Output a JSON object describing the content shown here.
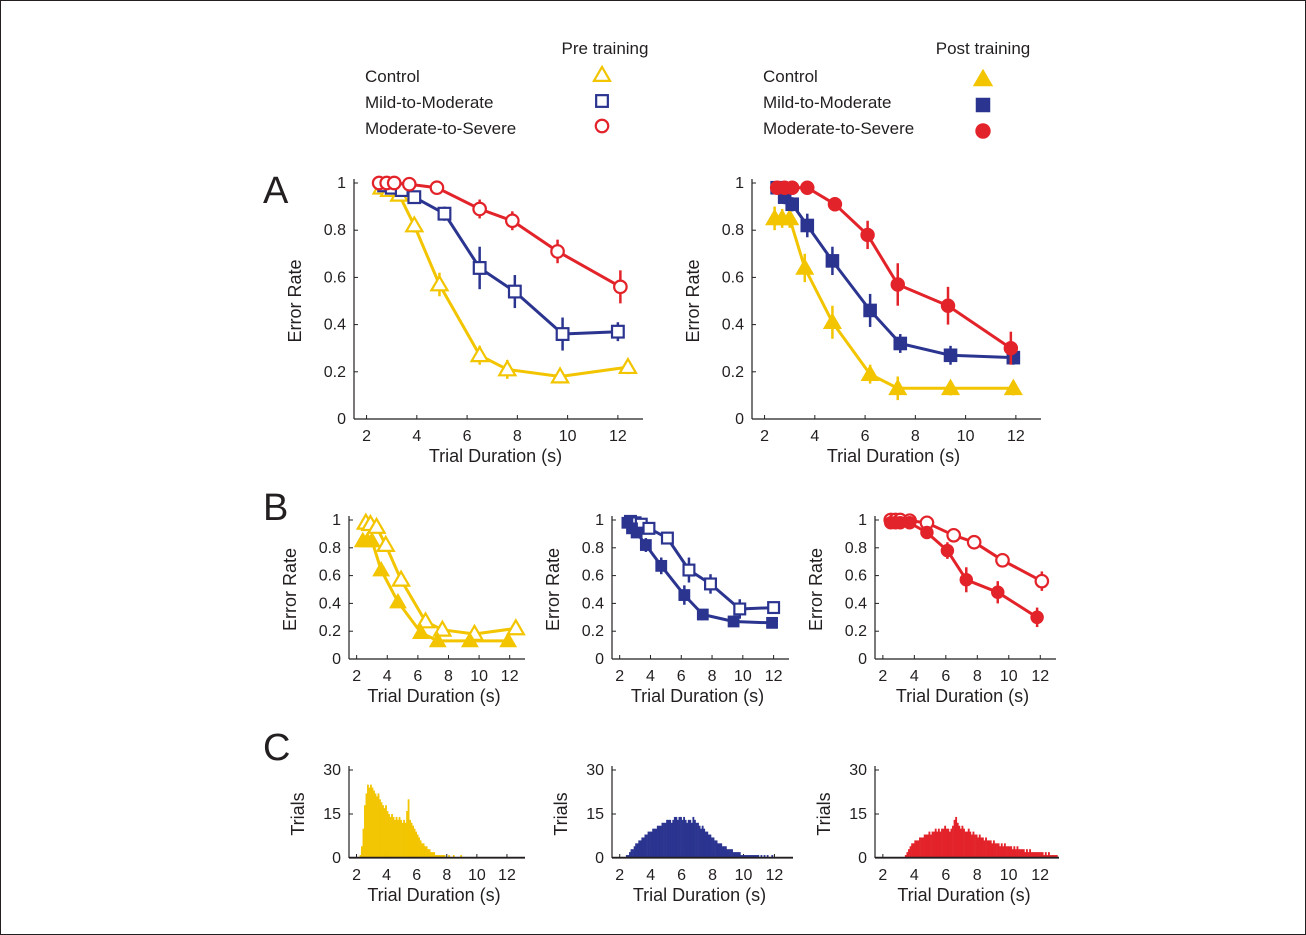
{
  "colors": {
    "control": "#f2c500",
    "mild": "#2b3590",
    "severe": "#e3232a",
    "ink": "#231f20"
  },
  "legend": {
    "pre": {
      "title": "Pre training",
      "items": [
        {
          "label": "Control",
          "marker": "triangle",
          "filled": false,
          "color": "#f2c500"
        },
        {
          "label": "Mild-to-Moderate",
          "marker": "square",
          "filled": false,
          "color": "#2b3590"
        },
        {
          "label": "Moderate-to-Severe",
          "marker": "circle",
          "filled": false,
          "color": "#e3232a"
        }
      ]
    },
    "post": {
      "title": "Post training",
      "items": [
        {
          "label": "Control",
          "marker": "triangle",
          "filled": true,
          "color": "#f2c500"
        },
        {
          "label": "Mild-to-Moderate",
          "marker": "square",
          "filled": true,
          "color": "#2b3590"
        },
        {
          "label": "Moderate-to-Severe",
          "marker": "circle",
          "filled": true,
          "color": "#e3232a"
        }
      ]
    }
  },
  "panel_letters": {
    "a": "A",
    "b": "B",
    "c": "C"
  },
  "chart_data": [
    {
      "id": "A-pre",
      "type": "line",
      "panel": "A",
      "xlabel": "Trial Duration (s)",
      "ylabel": "Error Rate",
      "xlim": [
        1.5,
        13
      ],
      "ylim": [
        0,
        1.05
      ],
      "xticks": [
        2,
        4,
        6,
        8,
        10,
        12
      ],
      "xtick_labels": [
        "2",
        "4",
        "6",
        "8",
        "10",
        "12"
      ],
      "yticks": [
        0,
        0.2,
        0.4,
        0.6,
        0.8,
        1
      ],
      "ytick_labels": [
        "0",
        "0.2",
        "0.4",
        "0.6",
        "0.8",
        "1"
      ],
      "series": [
        {
          "group": "control",
          "marker": "triangle",
          "filled": false,
          "x": [
            2.6,
            2.9,
            3.3,
            3.9,
            4.9,
            6.5,
            7.6,
            9.7,
            12.4
          ],
          "y": [
            0.98,
            0.97,
            0.95,
            0.82,
            0.57,
            0.27,
            0.21,
            0.18,
            0.22
          ],
          "err": [
            0.01,
            0.01,
            0.01,
            0.03,
            0.05,
            0.04,
            0.04,
            0.03,
            0.03
          ]
        },
        {
          "group": "mild",
          "marker": "square",
          "filled": false,
          "x": [
            2.7,
            3.0,
            3.4,
            3.9,
            5.1,
            6.5,
            7.9,
            9.8,
            12.0
          ],
          "y": [
            0.99,
            0.98,
            0.97,
            0.94,
            0.87,
            0.64,
            0.54,
            0.36,
            0.37
          ],
          "err": [
            0.01,
            0.01,
            0.01,
            0.02,
            0.03,
            0.09,
            0.07,
            0.07,
            0.04
          ]
        },
        {
          "group": "severe",
          "marker": "circle",
          "filled": false,
          "x": [
            2.5,
            2.8,
            3.1,
            3.7,
            4.8,
            6.5,
            7.8,
            9.6,
            12.1
          ],
          "y": [
            1.0,
            1.0,
            1.0,
            0.995,
            0.98,
            0.89,
            0.84,
            0.71,
            0.56
          ],
          "err": [
            0.005,
            0.005,
            0.005,
            0.005,
            0.01,
            0.04,
            0.04,
            0.05,
            0.07
          ]
        }
      ]
    },
    {
      "id": "A-post",
      "type": "line",
      "panel": "A",
      "xlabel": "Trial Duration (s)",
      "ylabel": "Error Rate",
      "xlim": [
        1.5,
        13
      ],
      "ylim": [
        0,
        1.05
      ],
      "xticks": [
        2,
        4,
        6,
        8,
        10,
        12
      ],
      "xtick_labels": [
        "2",
        "4",
        "6",
        "8",
        "10",
        "12"
      ],
      "yticks": [
        0,
        0.2,
        0.4,
        0.6,
        0.8,
        1
      ],
      "ytick_labels": [
        "0",
        "0.2",
        "0.4",
        "0.6",
        "0.8",
        "1"
      ],
      "series": [
        {
          "group": "control",
          "marker": "triangle",
          "filled": true,
          "x": [
            2.4,
            2.7,
            3.0,
            3.6,
            4.7,
            6.2,
            7.3,
            9.4,
            11.9
          ],
          "y": [
            0.85,
            0.85,
            0.85,
            0.64,
            0.41,
            0.19,
            0.13,
            0.13,
            0.13
          ],
          "err": [
            0.05,
            0.04,
            0.04,
            0.06,
            0.07,
            0.04,
            0.05,
            0.03,
            0.03
          ]
        },
        {
          "group": "mild",
          "marker": "square",
          "filled": true,
          "x": [
            2.5,
            2.8,
            3.1,
            3.7,
            4.7,
            6.2,
            7.4,
            9.4,
            11.9
          ],
          "y": [
            0.98,
            0.94,
            0.91,
            0.82,
            0.67,
            0.46,
            0.32,
            0.27,
            0.26
          ],
          "err": [
            0.02,
            0.03,
            0.03,
            0.05,
            0.06,
            0.07,
            0.04,
            0.04,
            0.03
          ]
        },
        {
          "group": "severe",
          "marker": "circle",
          "filled": true,
          "x": [
            2.5,
            2.8,
            3.1,
            3.7,
            4.8,
            6.1,
            7.3,
            9.3,
            11.8
          ],
          "y": [
            0.98,
            0.98,
            0.98,
            0.98,
            0.91,
            0.78,
            0.57,
            0.48,
            0.3
          ],
          "err": [
            0.01,
            0.01,
            0.01,
            0.01,
            0.03,
            0.06,
            0.09,
            0.08,
            0.07
          ]
        }
      ]
    },
    {
      "id": "B-control",
      "type": "line",
      "panel": "B",
      "xlabel": "Trial Duration (s)",
      "ylabel": "Error Rate",
      "xlim": [
        1.5,
        13
      ],
      "ylim": [
        0,
        1.05
      ],
      "xticks": [
        2,
        4,
        6,
        8,
        10,
        12
      ],
      "xtick_labels": [
        "2",
        "4",
        "6",
        "8",
        "10",
        "12"
      ],
      "yticks": [
        0,
        0.2,
        0.4,
        0.6,
        0.8,
        1
      ],
      "ytick_labels": [
        "0",
        "0.2",
        "0.4",
        "0.6",
        "0.8",
        "1"
      ],
      "series": [
        {
          "group": "control",
          "marker": "triangle",
          "filled": false,
          "x": [
            2.6,
            2.9,
            3.3,
            3.9,
            4.9,
            6.5,
            7.6,
            9.7,
            12.4
          ],
          "y": [
            0.98,
            0.97,
            0.95,
            0.82,
            0.57,
            0.27,
            0.21,
            0.18,
            0.22
          ],
          "err": []
        },
        {
          "group": "control",
          "marker": "triangle",
          "filled": true,
          "x": [
            2.4,
            2.7,
            3.0,
            3.6,
            4.7,
            6.2,
            7.3,
            9.4,
            11.9
          ],
          "y": [
            0.85,
            0.85,
            0.85,
            0.64,
            0.41,
            0.19,
            0.13,
            0.13,
            0.13
          ],
          "err": []
        }
      ]
    },
    {
      "id": "B-mild",
      "type": "line",
      "panel": "B",
      "xlabel": "Trial Duration (s)",
      "ylabel": "Error Rate",
      "xlim": [
        1.5,
        13
      ],
      "ylim": [
        0,
        1.05
      ],
      "xticks": [
        2,
        4,
        6,
        8,
        10,
        12
      ],
      "xtick_labels": [
        "2",
        "4",
        "6",
        "8",
        "10",
        "12"
      ],
      "yticks": [
        0,
        0.2,
        0.4,
        0.6,
        0.8,
        1
      ],
      "ytick_labels": [
        "0",
        "0.2",
        "0.4",
        "0.6",
        "0.8",
        "1"
      ],
      "series": [
        {
          "group": "mild",
          "marker": "square",
          "filled": false,
          "x": [
            2.7,
            3.0,
            3.4,
            3.9,
            5.1,
            6.5,
            7.9,
            9.8,
            12.0
          ],
          "y": [
            0.99,
            0.98,
            0.97,
            0.94,
            0.87,
            0.64,
            0.54,
            0.36,
            0.37
          ],
          "err": [
            0.01,
            0.01,
            0.01,
            0.02,
            0.03,
            0.09,
            0.07,
            0.07,
            0.04
          ]
        },
        {
          "group": "mild",
          "marker": "square",
          "filled": true,
          "x": [
            2.5,
            2.8,
            3.1,
            3.7,
            4.7,
            6.2,
            7.4,
            9.4,
            11.9
          ],
          "y": [
            0.98,
            0.94,
            0.91,
            0.82,
            0.67,
            0.46,
            0.32,
            0.27,
            0.26
          ],
          "err": [
            0.02,
            0.03,
            0.03,
            0.05,
            0.06,
            0.07,
            0.04,
            0.04,
            0.03
          ]
        }
      ]
    },
    {
      "id": "B-severe",
      "type": "line",
      "panel": "B",
      "xlabel": "Trial Duration (s)",
      "ylabel": "Error Rate",
      "xlim": [
        1.5,
        13
      ],
      "ylim": [
        0,
        1.05
      ],
      "xticks": [
        2,
        4,
        6,
        8,
        10,
        12
      ],
      "xtick_labels": [
        "2",
        "4",
        "6",
        "8",
        "10",
        "12"
      ],
      "yticks": [
        0,
        0.2,
        0.4,
        0.6,
        0.8,
        1
      ],
      "ytick_labels": [
        "0",
        "0.2",
        "0.4",
        "0.6",
        "0.8",
        "1"
      ],
      "series": [
        {
          "group": "severe",
          "marker": "circle",
          "filled": false,
          "x": [
            2.5,
            2.8,
            3.1,
            3.7,
            4.8,
            6.5,
            7.8,
            9.6,
            12.1
          ],
          "y": [
            1.0,
            1.0,
            1.0,
            0.995,
            0.98,
            0.89,
            0.84,
            0.71,
            0.56
          ],
          "err": [
            0.005,
            0.005,
            0.005,
            0.005,
            0.01,
            0.04,
            0.04,
            0.05,
            0.07
          ]
        },
        {
          "group": "severe",
          "marker": "circle",
          "filled": true,
          "x": [
            2.5,
            2.8,
            3.1,
            3.7,
            4.8,
            6.1,
            7.3,
            9.3,
            11.8
          ],
          "y": [
            0.98,
            0.98,
            0.98,
            0.98,
            0.91,
            0.78,
            0.57,
            0.48,
            0.3
          ],
          "err": [
            0.01,
            0.01,
            0.01,
            0.01,
            0.03,
            0.06,
            0.09,
            0.08,
            0.07
          ]
        }
      ]
    },
    {
      "id": "C-control",
      "type": "bar",
      "panel": "C",
      "group": "control",
      "xlabel": "Trial Duration (s)",
      "ylabel": "Trials",
      "xlim": [
        1.5,
        13.2
      ],
      "ylim": [
        0,
        30
      ],
      "xticks": [
        2,
        4,
        6,
        8,
        10,
        12
      ],
      "xtick_labels": [
        "2",
        "4",
        "6",
        "8",
        "10",
        "12"
      ],
      "yticks": [
        0,
        15,
        30
      ],
      "ytick_labels": [
        "0",
        "15",
        "30"
      ],
      "bin_start": 2.0,
      "bin_width": 0.1,
      "values": [
        0,
        0,
        1,
        4,
        10,
        18,
        22,
        25,
        24,
        25,
        24,
        23,
        22,
        21,
        22,
        20,
        19,
        18,
        17,
        18,
        16,
        15,
        14,
        15,
        14,
        13,
        14,
        13,
        14,
        13,
        12,
        13,
        12,
        16,
        20,
        13,
        12,
        11,
        10,
        9,
        8,
        7,
        6,
        5,
        5,
        4,
        4,
        3,
        3,
        2,
        2,
        2,
        1,
        1,
        1,
        1,
        1,
        1,
        1,
        0,
        0,
        1,
        0,
        0,
        1,
        0,
        0,
        0,
        0,
        1,
        0,
        0,
        0,
        0,
        0,
        0,
        0,
        0,
        0,
        0,
        0,
        0,
        0,
        0,
        0,
        0,
        0,
        0,
        0,
        0,
        0,
        0,
        0,
        0,
        0,
        0,
        0,
        0,
        0,
        0,
        0,
        0,
        0,
        0,
        0,
        0,
        0,
        0,
        0,
        0,
        0
      ]
    },
    {
      "id": "C-mild",
      "type": "bar",
      "panel": "C",
      "group": "mild",
      "xlabel": "Trial Duration (s)",
      "ylabel": "Trials",
      "xlim": [
        1.5,
        13.2
      ],
      "ylim": [
        0,
        30
      ],
      "xticks": [
        2,
        4,
        6,
        8,
        10,
        12
      ],
      "xtick_labels": [
        "2",
        "4",
        "6",
        "8",
        "10",
        "12"
      ],
      "yticks": [
        0,
        15,
        30
      ],
      "ytick_labels": [
        "0",
        "15",
        "30"
      ],
      "bin_start": 2.0,
      "bin_width": 0.1,
      "values": [
        0,
        0,
        0,
        0,
        1,
        1,
        2,
        3,
        3,
        4,
        5,
        5,
        6,
        6,
        7,
        7,
        8,
        8,
        9,
        9,
        9,
        10,
        10,
        10,
        11,
        11,
        11,
        12,
        12,
        12,
        13,
        13,
        13,
        12,
        13,
        14,
        14,
        13,
        14,
        14,
        13,
        14,
        13,
        12,
        13,
        13,
        12,
        14,
        13,
        12,
        12,
        11,
        10,
        11,
        10,
        9,
        9,
        8,
        8,
        7,
        7,
        6,
        6,
        5,
        5,
        5,
        4,
        4,
        4,
        3,
        3,
        3,
        3,
        2,
        2,
        2,
        2,
        2,
        1,
        1,
        1,
        1,
        1,
        1,
        1,
        1,
        1,
        1,
        1,
        1,
        0,
        1,
        0,
        1,
        0,
        1,
        0,
        0,
        1,
        0,
        0,
        0,
        0,
        0,
        0,
        0,
        0,
        0,
        0,
        0,
        0
      ]
    },
    {
      "id": "C-severe",
      "type": "bar",
      "panel": "C",
      "group": "severe",
      "xlabel": "Trial Duration (s)",
      "ylabel": "Trials",
      "xlim": [
        1.5,
        13.2
      ],
      "ylim": [
        0,
        30
      ],
      "xticks": [
        2,
        4,
        6,
        8,
        10,
        12
      ],
      "xtick_labels": [
        "2",
        "4",
        "6",
        "8",
        "10",
        "12"
      ],
      "yticks": [
        0,
        15,
        30
      ],
      "ytick_labels": [
        "0",
        "15",
        "30"
      ],
      "bin_start": 2.0,
      "bin_width": 0.1,
      "values": [
        0,
        0,
        0,
        0,
        0,
        0,
        0,
        0,
        0,
        0,
        0,
        0,
        0,
        0,
        1,
        2,
        3,
        4,
        5,
        5,
        6,
        6,
        6,
        7,
        7,
        7,
        8,
        8,
        8,
        9,
        8,
        9,
        9,
        10,
        9,
        10,
        9,
        10,
        10,
        11,
        10,
        10,
        9,
        10,
        11,
        13,
        14,
        12,
        11,
        10,
        11,
        10,
        9,
        9,
        10,
        9,
        8,
        9,
        8,
        8,
        7,
        8,
        7,
        7,
        6,
        7,
        6,
        6,
        6,
        5,
        6,
        5,
        5,
        5,
        4,
        5,
        4,
        5,
        4,
        4,
        4,
        4,
        3,
        4,
        3,
        4,
        3,
        3,
        3,
        3,
        2,
        3,
        2,
        3,
        2,
        2,
        2,
        2,
        2,
        2,
        2,
        2,
        1,
        2,
        1,
        2,
        1,
        1,
        1,
        1,
        1
      ]
    }
  ]
}
